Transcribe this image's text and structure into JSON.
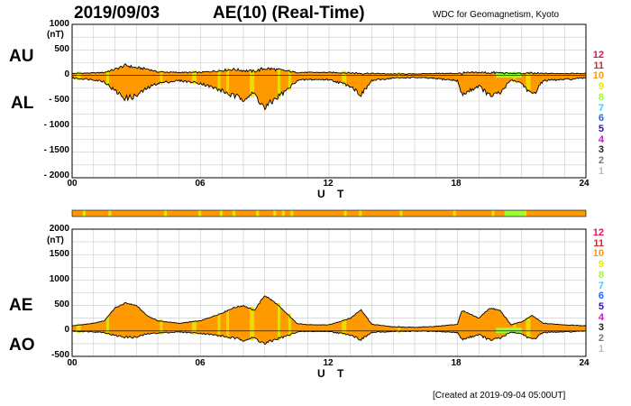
{
  "header": {
    "date": "2019/09/03",
    "title": "AE(10) (Real-Time)",
    "credit": "WDC for Geomagnetism, Kyoto"
  },
  "footer": {
    "created": "[Created at 2019-09-04 05:00UT]"
  },
  "legend": [
    {
      "label": "12",
      "color": "#e0115f"
    },
    {
      "label": "11",
      "color": "#e8202a"
    },
    {
      "label": "10",
      "color": "#ff9900"
    },
    {
      "label": "9",
      "color": "#e8e800"
    },
    {
      "label": "8",
      "color": "#99ff33"
    },
    {
      "label": "7",
      "color": "#33ccff"
    },
    {
      "label": "6",
      "color": "#1a66ff"
    },
    {
      "label": "5",
      "color": "#3311bb"
    },
    {
      "label": "4",
      "color": "#cc11cc"
    },
    {
      "label": "3",
      "color": "#222222"
    },
    {
      "label": "2",
      "color": "#777777"
    },
    {
      "label": "1",
      "color": "#bbbbbb"
    }
  ],
  "chart_data": [
    {
      "type": "area",
      "title": "AU / AL",
      "labels": {
        "upper": "AU",
        "lower": "AL",
        "unit": "(nT)"
      },
      "xlabel": "U T",
      "xlim": [
        0,
        24
      ],
      "ylim": [
        -2000,
        1000
      ],
      "xticks": [
        "00",
        "06",
        "12",
        "18",
        "24"
      ],
      "yticks": [
        "1000",
        "500",
        "0",
        "- 500",
        "- 1000",
        "- 1500",
        "- 2000"
      ],
      "series": [
        {
          "name": "AU",
          "x": [
            0,
            1,
            1.5,
            2,
            2.5,
            3,
            3.5,
            4,
            5,
            6,
            7,
            7.5,
            8,
            8.5,
            9,
            9.5,
            10,
            10.5,
            11,
            12,
            13,
            14,
            15,
            16,
            17,
            18,
            19,
            20,
            20.5,
            21,
            22,
            23,
            24
          ],
          "values": [
            40,
            50,
            60,
            120,
            200,
            150,
            130,
            70,
            60,
            60,
            100,
            120,
            100,
            80,
            140,
            120,
            90,
            60,
            60,
            60,
            50,
            40,
            30,
            30,
            40,
            40,
            60,
            50,
            40,
            40,
            40,
            40,
            40
          ]
        },
        {
          "name": "AL",
          "x": [
            0,
            1,
            1.5,
            2,
            2.5,
            3,
            3.5,
            4,
            5,
            6,
            7,
            7.5,
            8,
            8.5,
            9,
            9.5,
            10,
            10.5,
            11,
            12,
            13,
            13.5,
            14,
            15,
            16,
            17,
            18,
            18.2,
            19,
            19.5,
            20,
            20.5,
            21,
            21.5,
            22,
            23,
            24
          ],
          "values": [
            -50,
            -80,
            -120,
            -300,
            -450,
            -400,
            -250,
            -150,
            -100,
            -150,
            -300,
            -400,
            -450,
            -350,
            -650,
            -450,
            -300,
            -100,
            -80,
            -80,
            -200,
            -380,
            -100,
            -50,
            -40,
            -60,
            -100,
            -380,
            -200,
            -400,
            -350,
            -80,
            -150,
            -400,
            -100,
            -80,
            -50
          ]
        }
      ]
    },
    {
      "type": "area",
      "title": "AE / AO",
      "labels": {
        "upper": "AE",
        "lower": "AO",
        "unit": "(nT)"
      },
      "xlabel": "U T",
      "xlim": [
        0,
        24
      ],
      "ylim": [
        -500,
        2000
      ],
      "xticks": [
        "00",
        "06",
        "12",
        "18",
        "24"
      ],
      "yticks": [
        "2000",
        "1500",
        "1000",
        "500",
        "0",
        "-500"
      ],
      "series": [
        {
          "name": "AE",
          "x": [
            0,
            1,
            1.5,
            2,
            2.5,
            3,
            3.5,
            4,
            5,
            6,
            7,
            7.5,
            8,
            8.5,
            9,
            9.5,
            10,
            10.5,
            11,
            12,
            13,
            13.5,
            14,
            15,
            16,
            17,
            18,
            18.2,
            19,
            19.5,
            20,
            20.5,
            21,
            21.5,
            22,
            23,
            24
          ],
          "values": [
            100,
            150,
            200,
            450,
            550,
            500,
            300,
            200,
            150,
            200,
            350,
            450,
            500,
            400,
            700,
            550,
            350,
            150,
            120,
            120,
            250,
            420,
            130,
            80,
            70,
            90,
            130,
            400,
            250,
            450,
            400,
            120,
            180,
            300,
            150,
            120,
            100
          ]
        },
        {
          "name": "AO",
          "x": [
            0,
            1,
            1.5,
            2,
            2.5,
            3,
            3.5,
            4,
            5,
            6,
            7,
            7.5,
            8,
            8.5,
            9,
            9.5,
            10,
            10.5,
            11,
            12,
            13,
            13.5,
            14,
            15,
            16,
            17,
            18,
            18.2,
            19,
            19.5,
            20,
            20.5,
            21,
            21.5,
            22,
            23,
            24
          ],
          "values": [
            -5,
            -15,
            -30,
            -90,
            -120,
            -125,
            -60,
            -40,
            -20,
            -45,
            -100,
            -140,
            -175,
            -135,
            -255,
            -165,
            -105,
            -20,
            -10,
            -10,
            -75,
            -170,
            -30,
            -10,
            -5,
            -10,
            -30,
            -170,
            -70,
            -180,
            -145,
            -20,
            -55,
            -180,
            -30,
            -20,
            -5
          ]
        }
      ]
    }
  ]
}
